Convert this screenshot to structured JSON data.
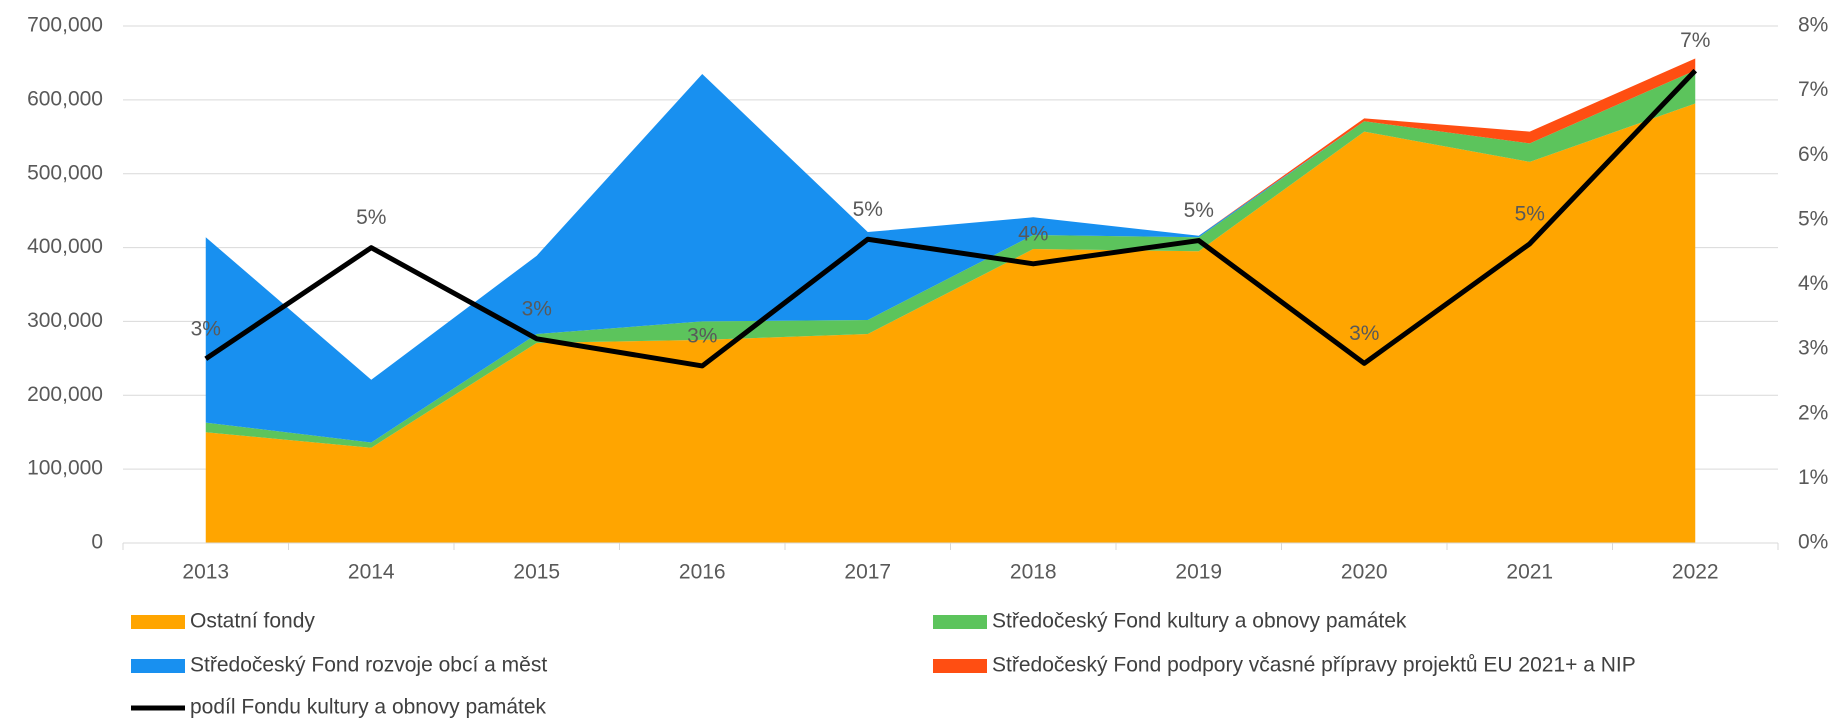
{
  "chart_data": {
    "type": "stacked_area_line",
    "categories": [
      "2013",
      "2014",
      "2015",
      "2016",
      "2017",
      "2018",
      "2019",
      "2020",
      "2021",
      "2022"
    ],
    "series": [
      {
        "name": "Ostatní fondy",
        "color": "#ffa500",
        "values": [
          150000,
          129000,
          271000,
          275000,
          283000,
          398000,
          395000,
          557000,
          516000,
          595000
        ]
      },
      {
        "name": "Středočeský Fond kultury a obnovy památek",
        "color": "#5cc45c",
        "values": [
          13000,
          7000,
          12000,
          25000,
          19000,
          19000,
          19000,
          14000,
          25000,
          45000
        ]
      },
      {
        "name": "Středočeský Fond rozvoje obcí a měst",
        "color": "#1890f0",
        "values": [
          251000,
          85000,
          106000,
          335000,
          119000,
          24000,
          2000,
          0,
          0,
          0
        ]
      },
      {
        "name": "Středočeský Fond podpory včasné přípravy projektů EU 2021+ a NIP",
        "color": "#ff4e12",
        "values": [
          0,
          0,
          0,
          0,
          0,
          0,
          0,
          4000,
          16000,
          16000
        ]
      },
      {
        "name": "podíl Fondu kultury a obnovy památek",
        "color": "#000000",
        "axis": "y2",
        "type": "line",
        "values": [
          2.85,
          4.57,
          3.16,
          2.74,
          4.7,
          4.32,
          4.68,
          2.78,
          4.63,
          7.31
        ],
        "value_labels": [
          "3%",
          "5%",
          "3%",
          "3%",
          "5%",
          "4%",
          "5%",
          "3%",
          "5%",
          "7%"
        ]
      }
    ],
    "ylim": [
      0,
      700000
    ],
    "yticks": [
      0,
      {
        "value": 100000,
        "label": "100,000"
      },
      {
        "value": 200000,
        "label": "200,000"
      },
      {
        "value": 300000,
        "label": "300,000"
      },
      {
        "value": 400000,
        "label": "400,000"
      },
      {
        "value": 500000,
        "label": "500,000"
      },
      {
        "value": 600000,
        "label": "600,000"
      },
      {
        "value": 700000,
        "label": "700,000"
      }
    ],
    "y2lim": [
      0,
      8
    ],
    "y2ticks": [
      {
        "value": 0,
        "label": "0%"
      },
      {
        "value": 1,
        "label": "1%"
      },
      {
        "value": 2,
        "label": "2%"
      },
      {
        "value": 3,
        "label": "3%"
      },
      {
        "value": 4,
        "label": "4%"
      },
      {
        "value": 5,
        "label": "5%"
      },
      {
        "value": 6,
        "label": "6%"
      },
      {
        "value": 7,
        "label": "7%"
      },
      {
        "value": 8,
        "label": "8%"
      }
    ],
    "grid": true
  }
}
